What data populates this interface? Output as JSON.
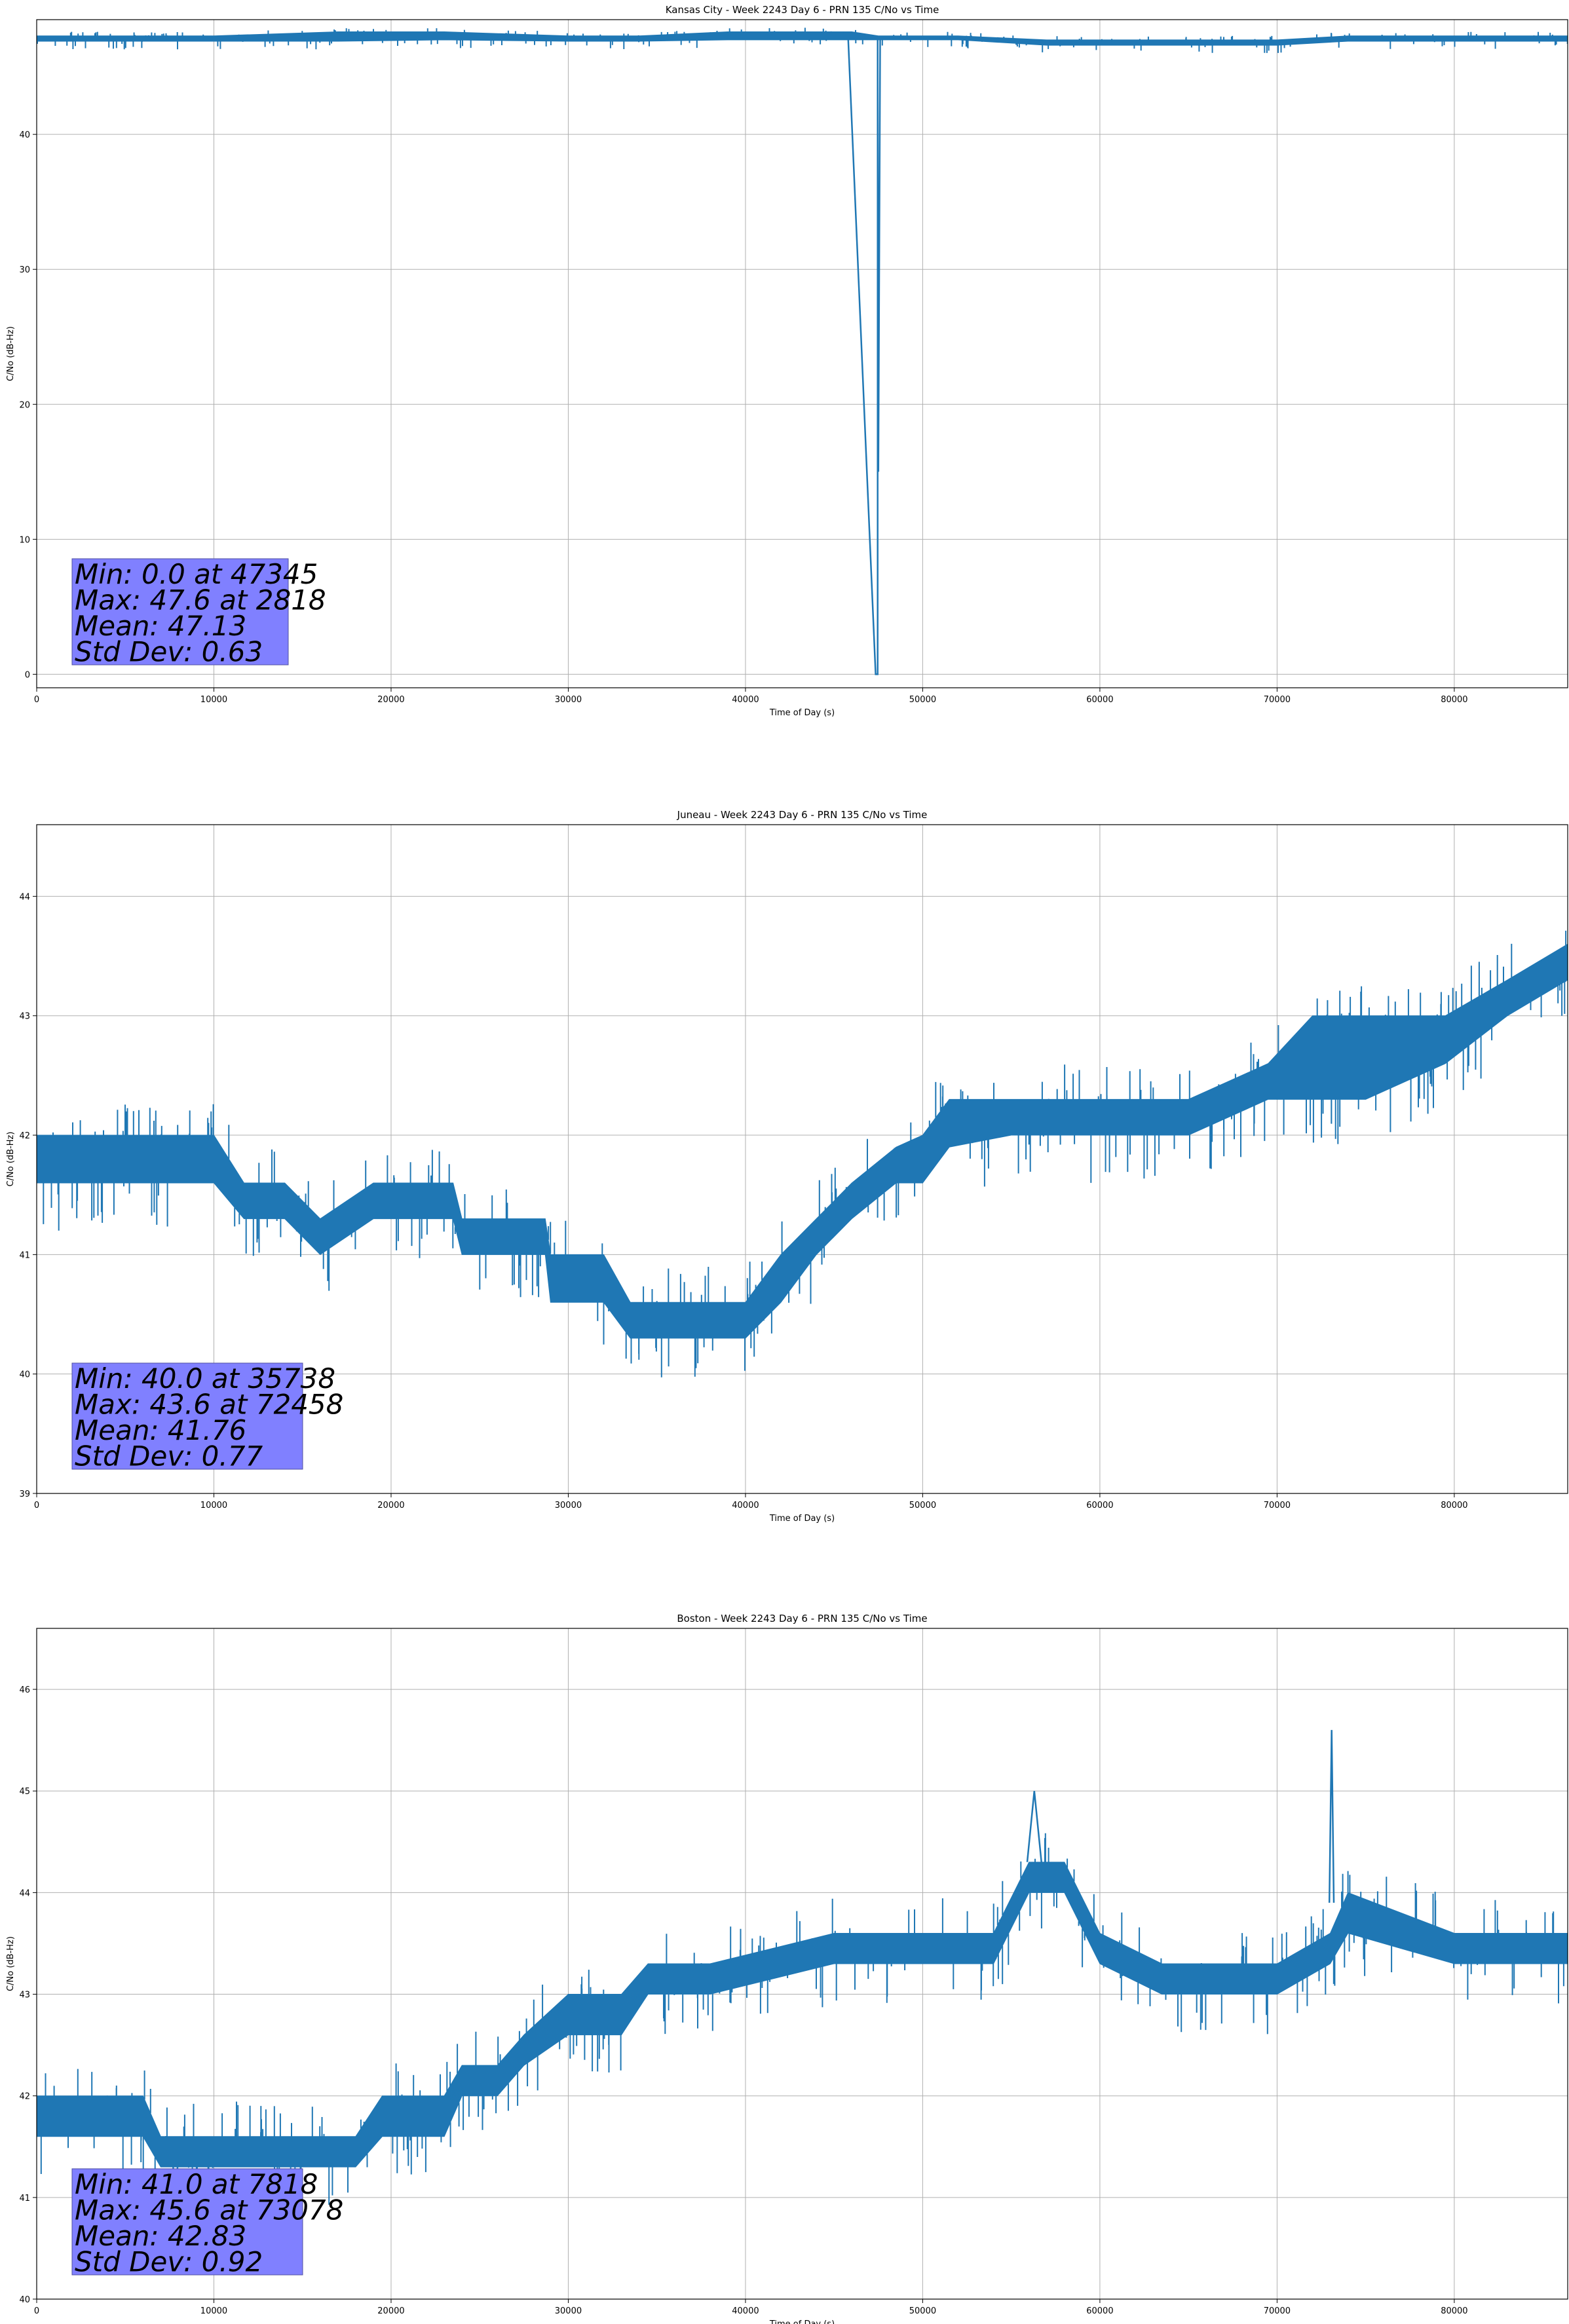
{
  "figure": {
    "background": "#ffffff"
  },
  "style": {
    "line_color": "#1f77b4",
    "grid_color": "#b0b0b0",
    "stats_box_color": "#8080ff",
    "stats_box_dark_color": "#1e3ce0"
  },
  "chart_data": [
    {
      "type": "line",
      "title": "Kansas City - Week 2243 Day 6 - PRN 135 C/No vs Time",
      "xlabel": "Time of Day (s)",
      "ylabel": "C/No (dB-Hz)",
      "xlim": [
        0,
        86400
      ],
      "ylim": [
        -1,
        48.5
      ],
      "x_ticks": [
        0,
        10000,
        20000,
        30000,
        40000,
        50000,
        60000,
        70000,
        80000
      ],
      "y_ticks": [
        0,
        10,
        20,
        30,
        40
      ],
      "grid": true,
      "stats": [
        "Min: 0.0 at 47345",
        "Max: 47.6 at 2818",
        "Mean: 47.13",
        "Std Dev: 0.63"
      ],
      "band": {
        "x": [
          0,
          2000,
          10000,
          17000,
          23000,
          30000,
          34000,
          39000,
          46000,
          47500,
          52000,
          57000,
          62000,
          66000,
          70000,
          74000,
          80000,
          86400
        ],
        "lo": [
          46.9,
          46.9,
          46.9,
          46.9,
          47.0,
          46.9,
          46.9,
          47.0,
          47.0,
          47.0,
          47.0,
          46.6,
          46.6,
          46.6,
          46.6,
          46.9,
          46.9,
          46.9
        ],
        "hi": [
          47.3,
          47.3,
          47.3,
          47.6,
          47.6,
          47.3,
          47.3,
          47.6,
          47.6,
          47.3,
          47.3,
          47.0,
          47.0,
          47.0,
          47.0,
          47.3,
          47.3,
          47.3
        ]
      },
      "series": [
        {
          "x": [
            45800,
            47345,
            47420,
            47460,
            47460,
            47500,
            47600
          ],
          "y": [
            47.0,
            0.0,
            0.0,
            0.0,
            47.0,
            15.0,
            47.0
          ]
        }
      ],
      "noise": {
        "seed": 11,
        "count": 240,
        "down": 0.6,
        "up": 0.3
      }
    },
    {
      "type": "line",
      "title": "Juneau - Week 2243 Day 6 - PRN 135 C/No vs Time",
      "xlabel": "Time of Day (s)",
      "ylabel": "C/No (dB-Hz)",
      "xlim": [
        0,
        86400
      ],
      "ylim": [
        39,
        44.6
      ],
      "x_ticks": [
        0,
        10000,
        20000,
        30000,
        40000,
        50000,
        60000,
        70000,
        80000
      ],
      "y_ticks": [
        39,
        40,
        41,
        42,
        43,
        44
      ],
      "grid": true,
      "stats": [
        "Min: 40.0 at 35738",
        "Max: 43.6 at 72458",
        "Mean: 41.76",
        "Std Dev: 0.77"
      ],
      "band": {
        "x": [
          0,
          5000,
          10000,
          11700,
          14000,
          16000,
          19000,
          23500,
          24000,
          28700,
          29000,
          32000,
          33500,
          37000,
          40000,
          42000,
          44000,
          46000,
          48500,
          50000,
          51500,
          55000,
          60000,
          65000,
          69500,
          72000,
          75000,
          79500,
          83000,
          86400
        ],
        "lo": [
          41.6,
          41.6,
          41.6,
          41.3,
          41.3,
          41.0,
          41.3,
          41.3,
          41.0,
          41.0,
          40.6,
          40.6,
          40.3,
          40.3,
          40.3,
          40.6,
          41.0,
          41.3,
          41.6,
          41.6,
          41.9,
          42.0,
          42.0,
          42.0,
          42.3,
          42.3,
          42.3,
          42.6,
          43.0,
          43.3
        ],
        "hi": [
          42.0,
          42.0,
          42.0,
          41.6,
          41.6,
          41.3,
          41.6,
          41.6,
          41.3,
          41.3,
          41.0,
          41.0,
          40.6,
          40.6,
          40.6,
          41.0,
          41.3,
          41.6,
          41.9,
          42.0,
          42.3,
          42.3,
          42.3,
          42.3,
          42.6,
          43.0,
          43.0,
          43.0,
          43.3,
          43.6
        ]
      },
      "noise": {
        "seed": 23,
        "count": 320,
        "down": 0.4,
        "up": 0.3
      }
    },
    {
      "type": "line",
      "title": "Boston - Week 2243 Day 6 - PRN 135 C/No vs Time",
      "xlabel": "Time of Day (s)",
      "ylabel": "C/No (dB-Hz)",
      "xlim": [
        0,
        86400
      ],
      "ylim": [
        40,
        46.6
      ],
      "x_ticks": [
        0,
        10000,
        20000,
        30000,
        40000,
        50000,
        60000,
        70000,
        80000
      ],
      "y_ticks": [
        40,
        41,
        42,
        43,
        44,
        45,
        46
      ],
      "grid": true,
      "stats": [
        "Min: 41.0 at 7818",
        "Max: 45.6 at 73078",
        "Mean: 42.83",
        "Std Dev: 0.92"
      ],
      "band": {
        "x": [
          0,
          6000,
          7000,
          10000,
          17000,
          18000,
          19500,
          23000,
          24000,
          26000,
          27500,
          30000,
          33000,
          34500,
          38000,
          45000,
          50000,
          54000,
          56000,
          58000,
          60000,
          63500,
          65000,
          70000,
          73000,
          74000,
          80000,
          86400
        ],
        "lo": [
          41.6,
          41.6,
          41.3,
          41.3,
          41.3,
          41.3,
          41.6,
          41.6,
          42.0,
          42.0,
          42.3,
          42.6,
          42.6,
          43.0,
          43.0,
          43.3,
          43.3,
          43.3,
          44.0,
          44.0,
          43.3,
          43.0,
          43.0,
          43.0,
          43.3,
          43.6,
          43.3,
          43.3
        ],
        "hi": [
          42.0,
          42.0,
          41.6,
          41.6,
          41.6,
          41.6,
          42.0,
          42.0,
          42.3,
          42.3,
          42.6,
          43.0,
          43.0,
          43.3,
          43.3,
          43.6,
          43.6,
          43.6,
          44.3,
          44.3,
          43.6,
          43.3,
          43.3,
          43.3,
          43.6,
          44.0,
          43.6,
          43.6
        ]
      },
      "series": [
        {
          "x": [
            55900,
            56300,
            56700
          ],
          "y": [
            44.3,
            45.0,
            44.3
          ]
        },
        {
          "x": [
            72950,
            73078,
            73200
          ],
          "y": [
            43.9,
            45.6,
            43.9
          ]
        },
        {
          "x": [
            7700,
            7818,
            7950
          ],
          "y": [
            41.3,
            41.0,
            41.3
          ]
        }
      ],
      "noise": {
        "seed": 37,
        "count": 300,
        "down": 0.4,
        "up": 0.35
      }
    }
  ]
}
